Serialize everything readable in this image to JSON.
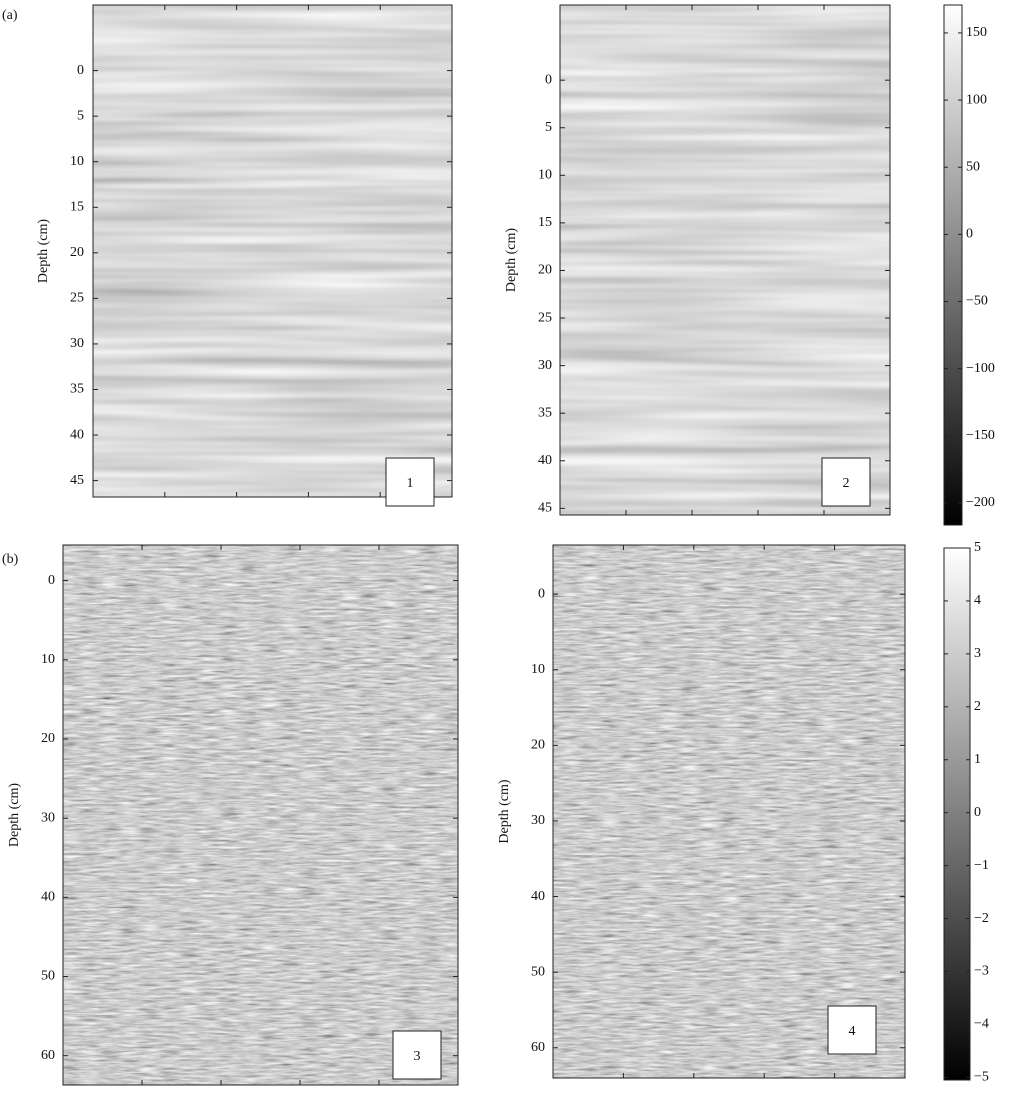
{
  "panel_labels": [
    "(a)",
    "(b)"
  ],
  "plots": [
    {
      "ylabel": "Depth (cm)",
      "ylim": [
        -7.2,
        46.8
      ],
      "yticks": [
        0,
        5,
        10,
        15,
        20,
        25,
        30,
        35,
        40,
        45
      ],
      "box": "1"
    },
    {
      "ylabel": "Depth (cm)",
      "ylim": [
        -7.9,
        45.7
      ],
      "yticks": [
        0,
        5,
        10,
        15,
        20,
        25,
        30,
        35,
        40,
        45
      ],
      "box": "2"
    },
    {
      "ylabel": "Depth (cm)",
      "ylim": [
        -4.5,
        63.7
      ],
      "yticks": [
        0,
        10,
        20,
        30,
        40,
        50,
        60
      ],
      "box": "3"
    },
    {
      "ylabel": "Depth (cm)",
      "ylim": [
        -6.5,
        64
      ],
      "yticks": [
        0,
        10,
        20,
        30,
        40,
        50,
        60
      ],
      "box": "4"
    }
  ],
  "colorbars": [
    {
      "lim": [
        170.8,
        -216.4
      ],
      "ticks": [
        150,
        100,
        50,
        0,
        {
          "value": -50,
          "label": "−50"
        },
        {
          "value": -100,
          "label": "−100"
        },
        {
          "value": -150,
          "label": "−150"
        },
        {
          "value": -200,
          "label": "−200"
        }
      ]
    },
    {
      "lim": [
        5,
        -5.05
      ],
      "ticks": [
        5,
        4,
        3,
        2,
        1,
        0,
        {
          "value": -1,
          "label": "−1"
        },
        {
          "value": -2,
          "label": "−2"
        },
        {
          "value": -3,
          "label": "−3"
        },
        {
          "value": -4,
          "label": "−4"
        },
        {
          "value": -5,
          "label": "−5"
        }
      ]
    }
  ]
}
